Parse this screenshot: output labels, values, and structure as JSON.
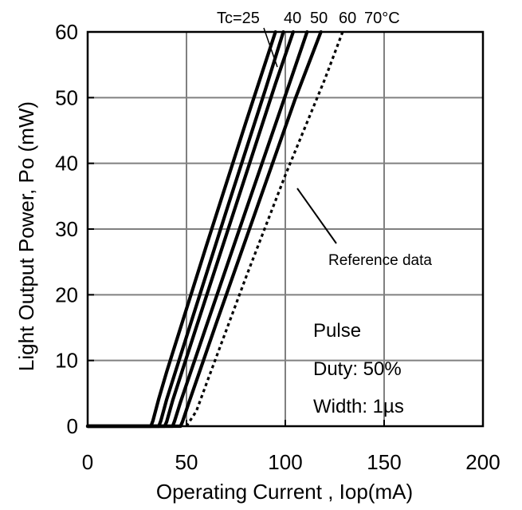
{
  "chart_data": {
    "type": "line",
    "xlabel": "Operating Current , Iop(mA)",
    "ylabel": "Light Output Power, Po (mW)",
    "xlim": [
      0,
      200
    ],
    "ylim": [
      0,
      60
    ],
    "xticks": [
      0,
      50,
      100,
      150,
      200
    ],
    "yticks": [
      0,
      10,
      20,
      30,
      40,
      50,
      60
    ],
    "grid": true,
    "series": [
      {
        "name": "Tc=25",
        "style": "solid",
        "points": [
          [
            0,
            0
          ],
          [
            32,
            0
          ],
          [
            33,
            0.8
          ],
          [
            36,
            4.2
          ],
          [
            40,
            8.3
          ],
          [
            60,
            27.4
          ],
          [
            80,
            46.2
          ],
          [
            95,
            60
          ]
        ]
      },
      {
        "name": "40",
        "style": "solid",
        "points": [
          [
            0,
            0
          ],
          [
            36,
            0
          ],
          [
            37,
            0.8
          ],
          [
            40,
            4.1
          ],
          [
            50,
            13.6
          ],
          [
            70,
            32.6
          ],
          [
            90,
            51.3
          ],
          [
            99,
            60
          ]
        ]
      },
      {
        "name": "50",
        "style": "solid",
        "points": [
          [
            0,
            0
          ],
          [
            39,
            0
          ],
          [
            40,
            0.7
          ],
          [
            43,
            3.9
          ],
          [
            55,
            15.1
          ],
          [
            75,
            33.6
          ],
          [
            95,
            52.1
          ],
          [
            104,
            60
          ]
        ]
      },
      {
        "name": "60",
        "style": "solid",
        "points": [
          [
            0,
            0
          ],
          [
            43,
            0
          ],
          [
            44,
            0.8
          ],
          [
            47,
            3.7
          ],
          [
            60,
            15.2
          ],
          [
            80,
            32.8
          ],
          [
            100,
            50.3
          ],
          [
            111,
            60
          ]
        ]
      },
      {
        "name": "70°C",
        "style": "solid",
        "points": [
          [
            0,
            0
          ],
          [
            47,
            0
          ],
          [
            48,
            0.7
          ],
          [
            51,
            3.4
          ],
          [
            65,
            15.6
          ],
          [
            85,
            32.7
          ],
          [
            105,
            49.8
          ],
          [
            118,
            60
          ]
        ]
      },
      {
        "name": "Reference data",
        "style": "dotted",
        "points": [
          [
            50,
            0
          ],
          [
            55,
            2.3
          ],
          [
            60,
            6.4
          ],
          [
            80,
            22.6
          ],
          [
            100,
            38.2
          ],
          [
            120,
            52.8
          ],
          [
            129,
            60
          ]
        ]
      }
    ],
    "labels": {
      "tc_prefix": "Tc=25",
      "t40": "40",
      "t50": "50",
      "t60": "60",
      "t70": "70°C",
      "reference": "Reference data",
      "pulse": "Pulse",
      "duty": "Duty: 50%",
      "width": "Width: 1µs"
    }
  },
  "style": {
    "line_color": "#000000",
    "grid_color": "#808080",
    "axis_color": "#000000",
    "background": "#ffffff"
  }
}
